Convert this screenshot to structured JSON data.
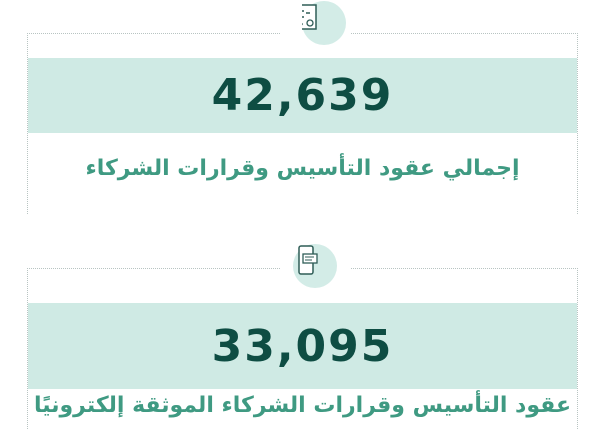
{
  "stats": [
    {
      "value": "42,639",
      "label": "إجمالي عقود التأسيس وقرارات الشركاء",
      "icon": "contract-signing-icon"
    },
    {
      "value": "33,095",
      "label": "عقود التأسيس وقرارات الشركاء الموثقة إلكترونيًا",
      "icon": "mobile-message-icon"
    }
  ],
  "colors": {
    "band": "#cfeae4",
    "number": "#0e4d43",
    "label": "#3f9a82"
  }
}
